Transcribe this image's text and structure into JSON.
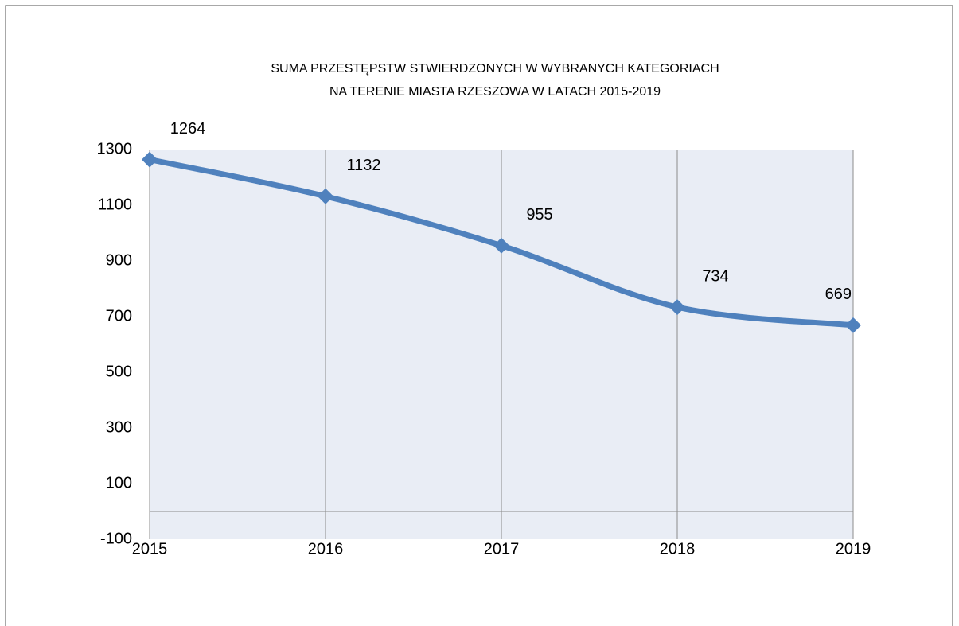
{
  "chart_data": {
    "type": "line",
    "title": [
      "SUMA PRZESTĘPSTW STWIERDZONYCH W WYBRANYCH  KATEGORIACH",
      "NA TERENIE  MIASTA RZESZOWA W  LATACH 2015-2019"
    ],
    "categories": [
      "2015",
      "2016",
      "2017",
      "2018",
      "2019"
    ],
    "values": [
      1264,
      1132,
      955,
      734,
      669
    ],
    "color": "#4f81bd",
    "ylim": [
      -100,
      1300
    ],
    "yticks": [
      -100,
      100,
      300,
      500,
      700,
      900,
      1100,
      1300
    ],
    "grid": true
  }
}
